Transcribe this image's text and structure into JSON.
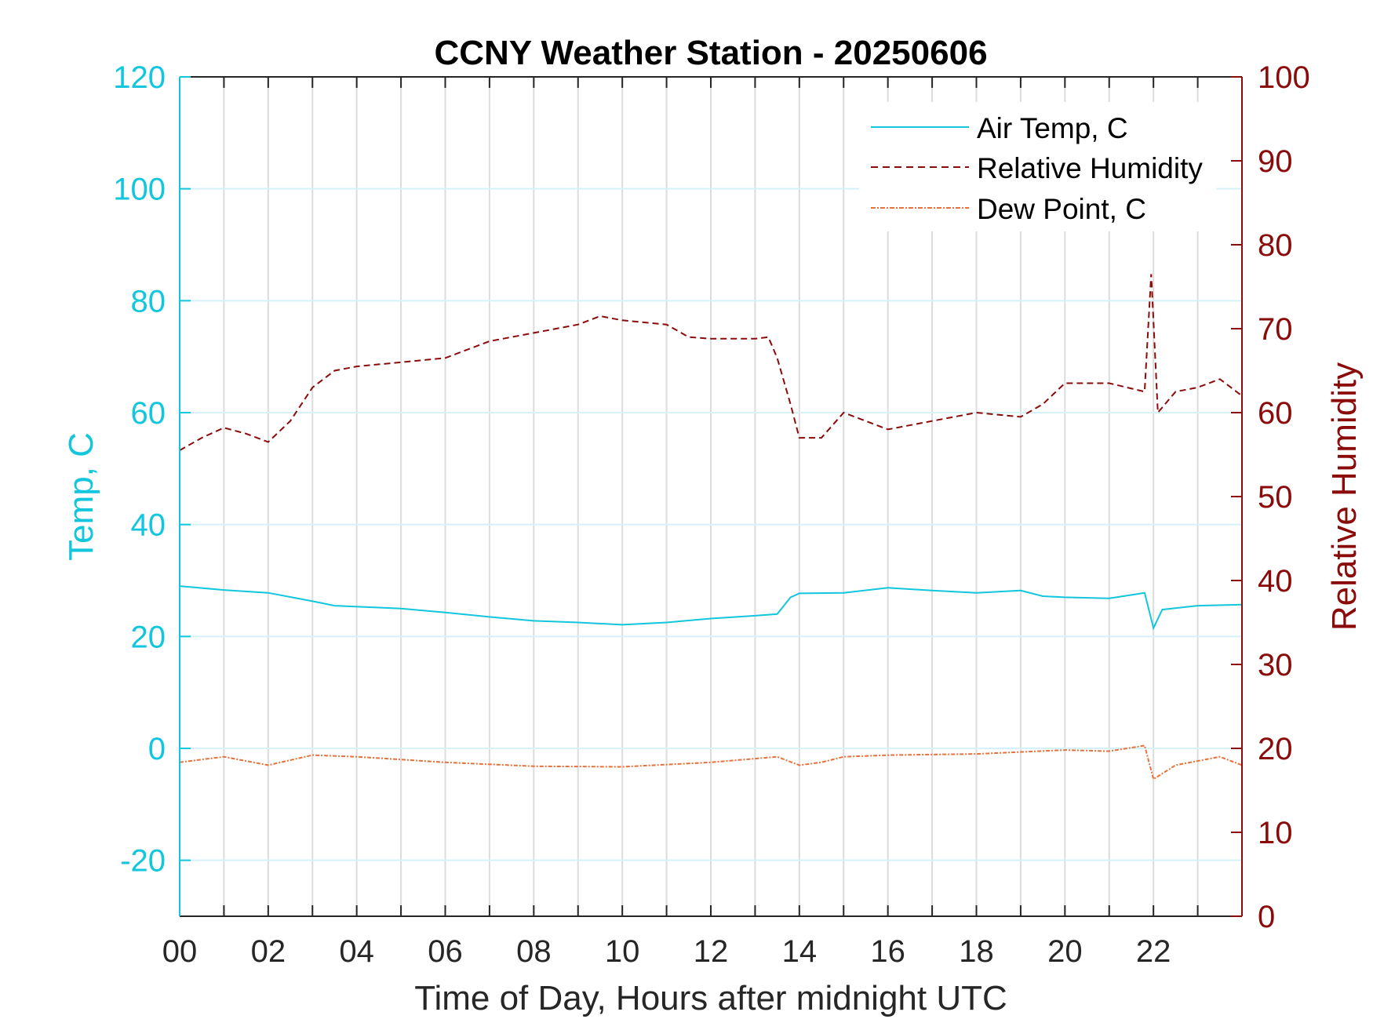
{
  "chart_data": {
    "type": "line",
    "title": "CCNY Weather Station - 20250606",
    "xlabel": "Time of Day, Hours after midnight UTC",
    "ylabel": "Temp, C",
    "ylabel_right": "Relative Humidity",
    "xlim": [
      0,
      24
    ],
    "ylim": [
      -30,
      120
    ],
    "ylim_right": [
      0,
      100
    ],
    "xticks": [
      0,
      2,
      4,
      6,
      8,
      10,
      12,
      14,
      16,
      18,
      20,
      22
    ],
    "xtick_labels": [
      "00",
      "02",
      "04",
      "06",
      "08",
      "10",
      "12",
      "14",
      "16",
      "18",
      "20",
      "22"
    ],
    "yticks": [
      -20,
      0,
      20,
      40,
      60,
      80,
      100,
      120
    ],
    "yticks_right": [
      0,
      10,
      20,
      30,
      40,
      50,
      60,
      70,
      80,
      90,
      100
    ],
    "grid": true,
    "legend_position": "top-right",
    "colors": {
      "temp": "#12c6dd",
      "rh": "#8b0a0a",
      "dew": "#e8703a",
      "axis": "#262626"
    },
    "series": [
      {
        "name": "Air Temp, C",
        "axis": "left",
        "style": "solid",
        "x": [
          0,
          1,
          2,
          3,
          3.5,
          5,
          6,
          7,
          8,
          9,
          10,
          11,
          12,
          13,
          13.5,
          13.8,
          14,
          15,
          16,
          17,
          18,
          19,
          19.5,
          20,
          21,
          21.8,
          22,
          22.2,
          23,
          24
        ],
        "y": [
          29,
          28.3,
          27.8,
          26.3,
          25.5,
          25,
          24.3,
          23.5,
          22.8,
          22.5,
          22.1,
          22.5,
          23.2,
          23.7,
          24,
          27,
          27.7,
          27.8,
          28.7,
          28.2,
          27.8,
          28.2,
          27.2,
          27,
          26.8,
          27.8,
          21.5,
          24.8,
          25.5,
          25.7
        ]
      },
      {
        "name": "Relative Humidity",
        "axis": "right",
        "style": "dashed",
        "x": [
          0,
          0.5,
          1,
          1.5,
          2,
          2.5,
          3,
          3.5,
          4,
          5,
          6,
          7,
          8,
          9,
          9.5,
          10,
          11,
          11.5,
          12,
          13,
          13.3,
          13.5,
          13.8,
          14,
          14.5,
          15,
          16,
          17,
          18,
          19,
          19.5,
          20,
          21,
          21.8,
          21.95,
          22.1,
          22.5,
          23,
          23.5,
          24
        ],
        "y": [
          55.5,
          57,
          58.2,
          57.5,
          56.5,
          59,
          63,
          65,
          65.5,
          66,
          66.5,
          68.5,
          69.5,
          70.5,
          71.5,
          71,
          70.5,
          69,
          68.8,
          68.8,
          69,
          66.5,
          61,
          57,
          57,
          60,
          58,
          59,
          60,
          59.5,
          61,
          63.5,
          63.5,
          62.5,
          76.5,
          60,
          62.5,
          63,
          64,
          62
        ]
      },
      {
        "name": "Dew Point, C",
        "axis": "left",
        "style": "dashdot",
        "x": [
          0,
          1,
          2,
          3,
          4,
          6,
          8,
          10,
          12,
          13.5,
          14,
          14.5,
          15,
          16,
          18,
          20,
          21,
          21.8,
          22,
          22.5,
          23.5,
          24
        ],
        "y": [
          -2.5,
          -1.5,
          -3,
          -1.2,
          -1.5,
          -2.5,
          -3.2,
          -3.3,
          -2.5,
          -1.5,
          -3,
          -2.5,
          -1.5,
          -1.2,
          -1,
          -0.3,
          -0.5,
          0.5,
          -5.5,
          -3,
          -1.5,
          -3
        ]
      }
    ]
  }
}
